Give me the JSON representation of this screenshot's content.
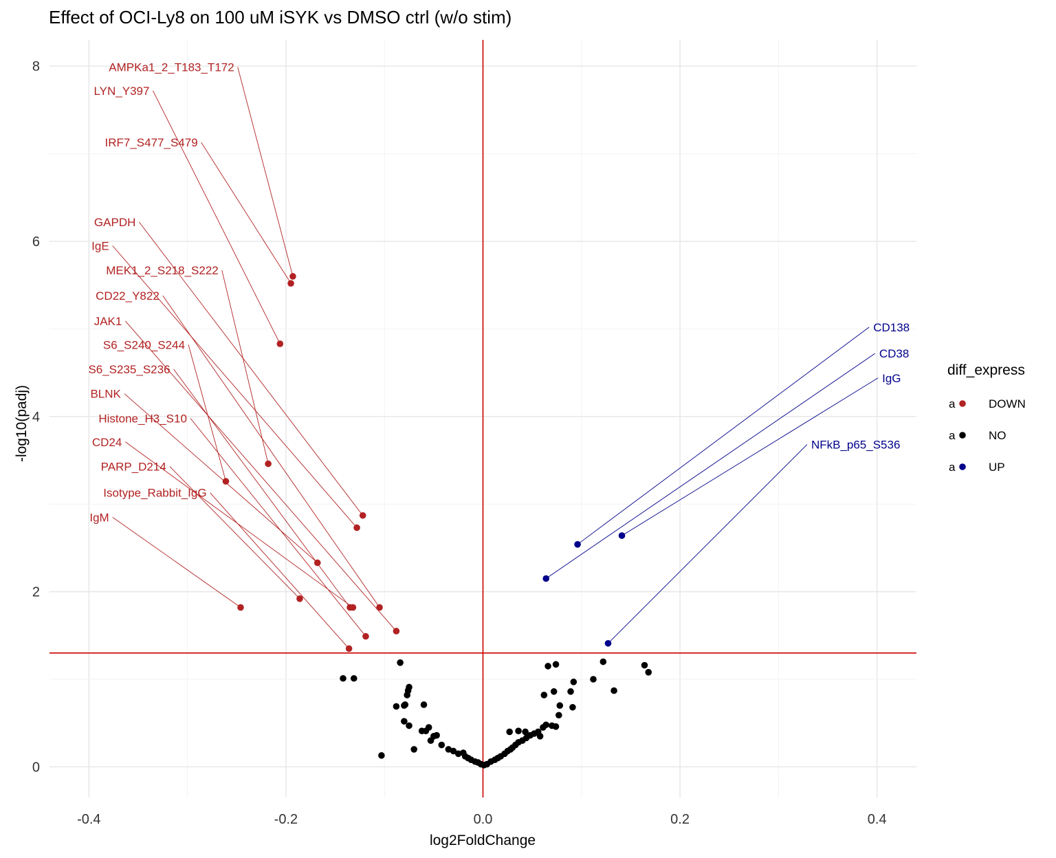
{
  "chart_data": {
    "type": "scatter",
    "title": "Effect of OCI-Ly8 on 100 uM iSYK vs DMSO ctrl (w/o stim)",
    "xlabel": "log2FoldChange",
    "ylabel": "-log10(padj)",
    "xlim": [
      -0.44,
      0.44
    ],
    "ylim": [
      -0.35,
      8.3
    ],
    "xticks": [
      -0.4,
      -0.2,
      0.0,
      0.2,
      0.4
    ],
    "xtick_labels": [
      "-0.4",
      "-0.2",
      "0.0",
      "0.2",
      "0.4"
    ],
    "yticks": [
      0,
      2,
      4,
      6,
      8
    ],
    "ytick_labels": [
      "0",
      "2",
      "4",
      "6",
      "8"
    ],
    "grid": true,
    "vline_x": 0.0,
    "hline_y": 1.3,
    "reference_line_color": "#cc0000",
    "colors": {
      "DOWN": "#b22222",
      "NO": "#000000",
      "UP": "#00008b"
    },
    "legend": {
      "title": "diff_express",
      "position": "right",
      "key_glyph": "a",
      "entries": [
        "DOWN",
        "NO",
        "UP"
      ]
    },
    "labeled_points": [
      {
        "label": "AMPKa1_2_T183_T172",
        "x": -0.193,
        "y": 5.6,
        "group": "DOWN"
      },
      {
        "label": "LYN_Y397",
        "x": -0.206,
        "y": 4.83,
        "group": "DOWN"
      },
      {
        "label": "IRF7_S477_S479",
        "x": -0.195,
        "y": 5.52,
        "group": "DOWN"
      },
      {
        "label": "GAPDH",
        "x": -0.122,
        "y": 2.87,
        "group": "DOWN"
      },
      {
        "label": "IgE",
        "x": -0.128,
        "y": 2.73,
        "group": "DOWN"
      },
      {
        "label": "MEK1_2_S218_S222",
        "x": -0.218,
        "y": 3.46,
        "group": "DOWN"
      },
      {
        "label": "CD22_Y822",
        "x": -0.105,
        "y": 1.82,
        "group": "DOWN"
      },
      {
        "label": "JAK1",
        "x": -0.088,
        "y": 1.55,
        "group": "DOWN"
      },
      {
        "label": "S6_S240_S244",
        "x": -0.261,
        "y": 3.26,
        "group": "DOWN"
      },
      {
        "label": "S6_S235_S236",
        "x": -0.135,
        "y": 1.82,
        "group": "DOWN"
      },
      {
        "label": "BLNK",
        "x": -0.168,
        "y": 2.33,
        "group": "DOWN"
      },
      {
        "label": "Histone_H3_S10",
        "x": -0.119,
        "y": 1.49,
        "group": "DOWN"
      },
      {
        "label": "CD24",
        "x": -0.132,
        "y": 1.82,
        "group": "DOWN"
      },
      {
        "label": "PARP_D214",
        "x": -0.186,
        "y": 1.92,
        "group": "DOWN"
      },
      {
        "label": "Isotype_Rabbit_IgG",
        "x": -0.136,
        "y": 1.35,
        "group": "DOWN"
      },
      {
        "label": "IgM",
        "x": -0.246,
        "y": 1.82,
        "group": "DOWN"
      },
      {
        "label": "CD138",
        "x": 0.096,
        "y": 2.54,
        "group": "UP"
      },
      {
        "label": "CD38",
        "x": 0.064,
        "y": 2.15,
        "group": "UP"
      },
      {
        "label": "IgG",
        "x": 0.141,
        "y": 2.64,
        "group": "UP"
      },
      {
        "label": "NFkB_p65_S536",
        "x": 0.127,
        "y": 1.41,
        "group": "UP"
      }
    ],
    "label_anchor_points": [
      {
        "x": -0.249,
        "y": 7.99
      },
      {
        "x": -0.335,
        "y": 7.72
      },
      {
        "x": -0.286,
        "y": 7.13
      },
      {
        "x": -0.349,
        "y": 6.22
      },
      {
        "x": -0.376,
        "y": 5.95
      },
      {
        "x": -0.265,
        "y": 5.67
      },
      {
        "x": -0.325,
        "y": 5.38
      },
      {
        "x": -0.363,
        "y": 5.09
      },
      {
        "x": -0.299,
        "y": 4.82
      },
      {
        "x": -0.314,
        "y": 4.54
      },
      {
        "x": -0.364,
        "y": 4.26
      },
      {
        "x": -0.297,
        "y": 3.98
      },
      {
        "x": -0.363,
        "y": 3.71
      },
      {
        "x": -0.318,
        "y": 3.43
      },
      {
        "x": -0.277,
        "y": 3.13
      },
      {
        "x": -0.376,
        "y": 2.85
      },
      {
        "x": 0.392,
        "y": 5.02
      },
      {
        "x": 0.398,
        "y": 4.72
      },
      {
        "x": 0.401,
        "y": 4.44
      },
      {
        "x": 0.329,
        "y": 3.68
      }
    ],
    "ns_points": [
      {
        "x": -0.084,
        "y": 1.19
      },
      {
        "x": -0.142,
        "y": 1.01
      },
      {
        "x": -0.131,
        "y": 1.01
      },
      {
        "x": -0.103,
        "y": 0.13
      },
      {
        "x": -0.075,
        "y": 0.91
      },
      {
        "x": -0.076,
        "y": 0.87
      },
      {
        "x": -0.077,
        "y": 0.82
      },
      {
        "x": -0.088,
        "y": 0.69
      },
      {
        "x": -0.079,
        "y": 0.71
      },
      {
        "x": -0.08,
        "y": 0.7
      },
      {
        "x": -0.06,
        "y": 0.71
      },
      {
        "x": -0.08,
        "y": 0.52
      },
      {
        "x": -0.075,
        "y": 0.47
      },
      {
        "x": -0.07,
        "y": 0.2
      },
      {
        "x": -0.062,
        "y": 0.41
      },
      {
        "x": -0.058,
        "y": 0.41
      },
      {
        "x": -0.055,
        "y": 0.45
      },
      {
        "x": -0.05,
        "y": 0.35
      },
      {
        "x": -0.053,
        "y": 0.3
      },
      {
        "x": -0.047,
        "y": 0.36
      },
      {
        "x": -0.042,
        "y": 0.25
      },
      {
        "x": -0.035,
        "y": 0.2
      },
      {
        "x": -0.03,
        "y": 0.18
      },
      {
        "x": -0.025,
        "y": 0.15
      },
      {
        "x": -0.02,
        "y": 0.16
      },
      {
        "x": -0.018,
        "y": 0.12
      },
      {
        "x": -0.015,
        "y": 0.1
      },
      {
        "x": -0.012,
        "y": 0.08
      },
      {
        "x": -0.008,
        "y": 0.06
      },
      {
        "x": -0.005,
        "y": 0.05
      },
      {
        "x": -0.002,
        "y": 0.03
      },
      {
        "x": 0.001,
        "y": 0.02
      },
      {
        "x": 0.004,
        "y": 0.03
      },
      {
        "x": 0.008,
        "y": 0.06
      },
      {
        "x": 0.012,
        "y": 0.08
      },
      {
        "x": 0.015,
        "y": 0.1
      },
      {
        "x": 0.018,
        "y": 0.12
      },
      {
        "x": 0.022,
        "y": 0.15
      },
      {
        "x": 0.025,
        "y": 0.18
      },
      {
        "x": 0.028,
        "y": 0.2
      },
      {
        "x": 0.03,
        "y": 0.22
      },
      {
        "x": 0.033,
        "y": 0.25
      },
      {
        "x": 0.036,
        "y": 0.28
      },
      {
        "x": 0.04,
        "y": 0.3
      },
      {
        "x": 0.044,
        "y": 0.33
      },
      {
        "x": 0.048,
        "y": 0.36
      },
      {
        "x": 0.052,
        "y": 0.38
      },
      {
        "x": 0.056,
        "y": 0.4
      },
      {
        "x": 0.058,
        "y": 0.35
      },
      {
        "x": 0.027,
        "y": 0.4
      },
      {
        "x": 0.036,
        "y": 0.41
      },
      {
        "x": 0.043,
        "y": 0.4
      },
      {
        "x": 0.061,
        "y": 0.45
      },
      {
        "x": 0.064,
        "y": 0.48
      },
      {
        "x": 0.07,
        "y": 0.47
      },
      {
        "x": 0.074,
        "y": 0.46
      },
      {
        "x": 0.077,
        "y": 0.59
      },
      {
        "x": 0.078,
        "y": 0.7
      },
      {
        "x": 0.062,
        "y": 0.82
      },
      {
        "x": 0.072,
        "y": 0.86
      },
      {
        "x": 0.066,
        "y": 1.15
      },
      {
        "x": 0.074,
        "y": 1.17
      },
      {
        "x": 0.089,
        "y": 0.86
      },
      {
        "x": 0.092,
        "y": 0.97
      },
      {
        "x": 0.091,
        "y": 0.68
      },
      {
        "x": 0.112,
        "y": 1.0
      },
      {
        "x": 0.122,
        "y": 1.2
      },
      {
        "x": 0.133,
        "y": 0.87
      },
      {
        "x": 0.164,
        "y": 1.16
      },
      {
        "x": 0.168,
        "y": 1.08
      }
    ]
  }
}
